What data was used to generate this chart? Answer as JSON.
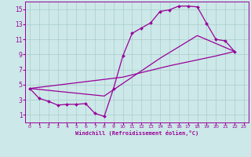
{
  "background_color": "#cce8e8",
  "line_color": "#990099",
  "grid_color": "#aacccc",
  "xlabel": "Windchill (Refroidissement éolien,°C)",
  "xlim": [
    -0.5,
    23.5
  ],
  "ylim": [
    0,
    16
  ],
  "xticks": [
    0,
    1,
    2,
    3,
    4,
    5,
    6,
    7,
    8,
    9,
    10,
    11,
    12,
    13,
    14,
    15,
    16,
    17,
    18,
    19,
    20,
    21,
    22,
    23
  ],
  "yticks": [
    1,
    3,
    5,
    7,
    9,
    11,
    13,
    15
  ],
  "curve1_x": [
    0,
    1,
    2,
    3,
    4,
    5,
    6,
    7,
    8,
    9,
    10,
    11,
    12,
    13,
    14,
    15,
    16,
    17,
    18,
    19,
    20,
    21,
    22
  ],
  "curve1_y": [
    4.5,
    3.2,
    2.8,
    2.3,
    2.4,
    2.4,
    2.5,
    1.2,
    0.8,
    4.5,
    8.8,
    11.8,
    12.5,
    13.2,
    14.7,
    14.9,
    15.4,
    15.4,
    15.3,
    13.1,
    11.0,
    10.8,
    9.4
  ],
  "curve2_x": [
    0,
    8,
    14,
    18,
    22
  ],
  "curve2_y": [
    4.5,
    3.5,
    8.5,
    11.5,
    9.4
  ],
  "curve3_x": [
    0,
    10,
    15,
    20,
    22
  ],
  "curve3_y": [
    4.5,
    6.0,
    7.5,
    8.8,
    9.4
  ]
}
